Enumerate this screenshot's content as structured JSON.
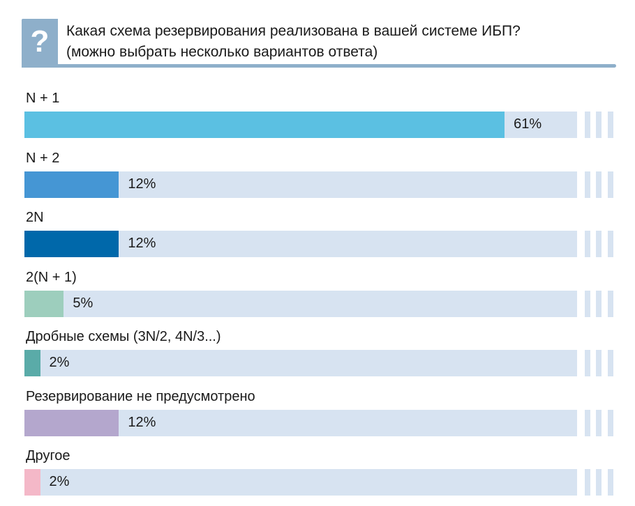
{
  "header": {
    "icon": "question-icon",
    "icon_text": "?",
    "title_line1": "Какая схема резервирования реализована в вашей системе ИБП?",
    "title_line2": "(можно выбрать несколько вариантов ответа)"
  },
  "chart_data": {
    "type": "bar",
    "orientation": "horizontal",
    "title": "Какая схема резервирования реализована в вашей системе ИБП? (можно выбрать несколько вариантов ответа)",
    "categories": [
      "N + 1",
      "N + 2",
      "2N",
      "2(N + 1)",
      "Дробные схемы (3N/2, 4N/3...)",
      "Резервирование не предусмотрено",
      "Другое"
    ],
    "values": [
      61,
      12,
      12,
      5,
      2,
      12,
      2
    ],
    "labels": [
      "61%",
      "12%",
      "12%",
      "5%",
      "2%",
      "12%",
      "2%"
    ],
    "colors": [
      "#5bc0e2",
      "#4596d4",
      "#0068aa",
      "#9dcebd",
      "#5aaba8",
      "#b4a7cd",
      "#f4b8c8"
    ],
    "track_color": "#d7e3f1",
    "unit": "%"
  }
}
